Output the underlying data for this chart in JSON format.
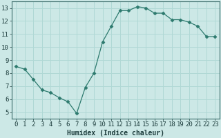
{
  "x": [
    0,
    1,
    2,
    3,
    4,
    5,
    6,
    7,
    8,
    9,
    10,
    11,
    12,
    13,
    14,
    15,
    16,
    17,
    18,
    19,
    20,
    21,
    22,
    23
  ],
  "y": [
    8.5,
    8.3,
    7.5,
    6.7,
    6.5,
    6.1,
    5.8,
    4.9,
    6.9,
    8.0,
    10.4,
    11.6,
    12.8,
    12.8,
    13.1,
    13.0,
    12.6,
    12.6,
    12.1,
    12.1,
    11.9,
    11.6,
    10.8,
    10.8
  ],
  "line_color": "#2d7a6e",
  "marker": "D",
  "marker_size": 2.5,
  "bg_color": "#cce8e6",
  "grid_color": "#b0d8d5",
  "xlabel": "Humidex (Indice chaleur)",
  "xlabel_fontsize": 7,
  "tick_fontsize": 6.5,
  "ylim": [
    4.5,
    13.5
  ],
  "xlim": [
    -0.5,
    23.5
  ],
  "yticks": [
    5,
    6,
    7,
    8,
    9,
    10,
    11,
    12,
    13
  ],
  "xticks": [
    0,
    1,
    2,
    3,
    4,
    5,
    6,
    7,
    8,
    9,
    10,
    11,
    12,
    13,
    14,
    15,
    16,
    17,
    18,
    19,
    20,
    21,
    22,
    23
  ],
  "xtick_labels": [
    "0",
    "1",
    "2",
    "3",
    "4",
    "5",
    "6",
    "7",
    "8",
    "9",
    "10",
    "11",
    "12",
    "13",
    "14",
    "15",
    "16",
    "17",
    "18",
    "19",
    "20",
    "21",
    "22",
    "23"
  ]
}
